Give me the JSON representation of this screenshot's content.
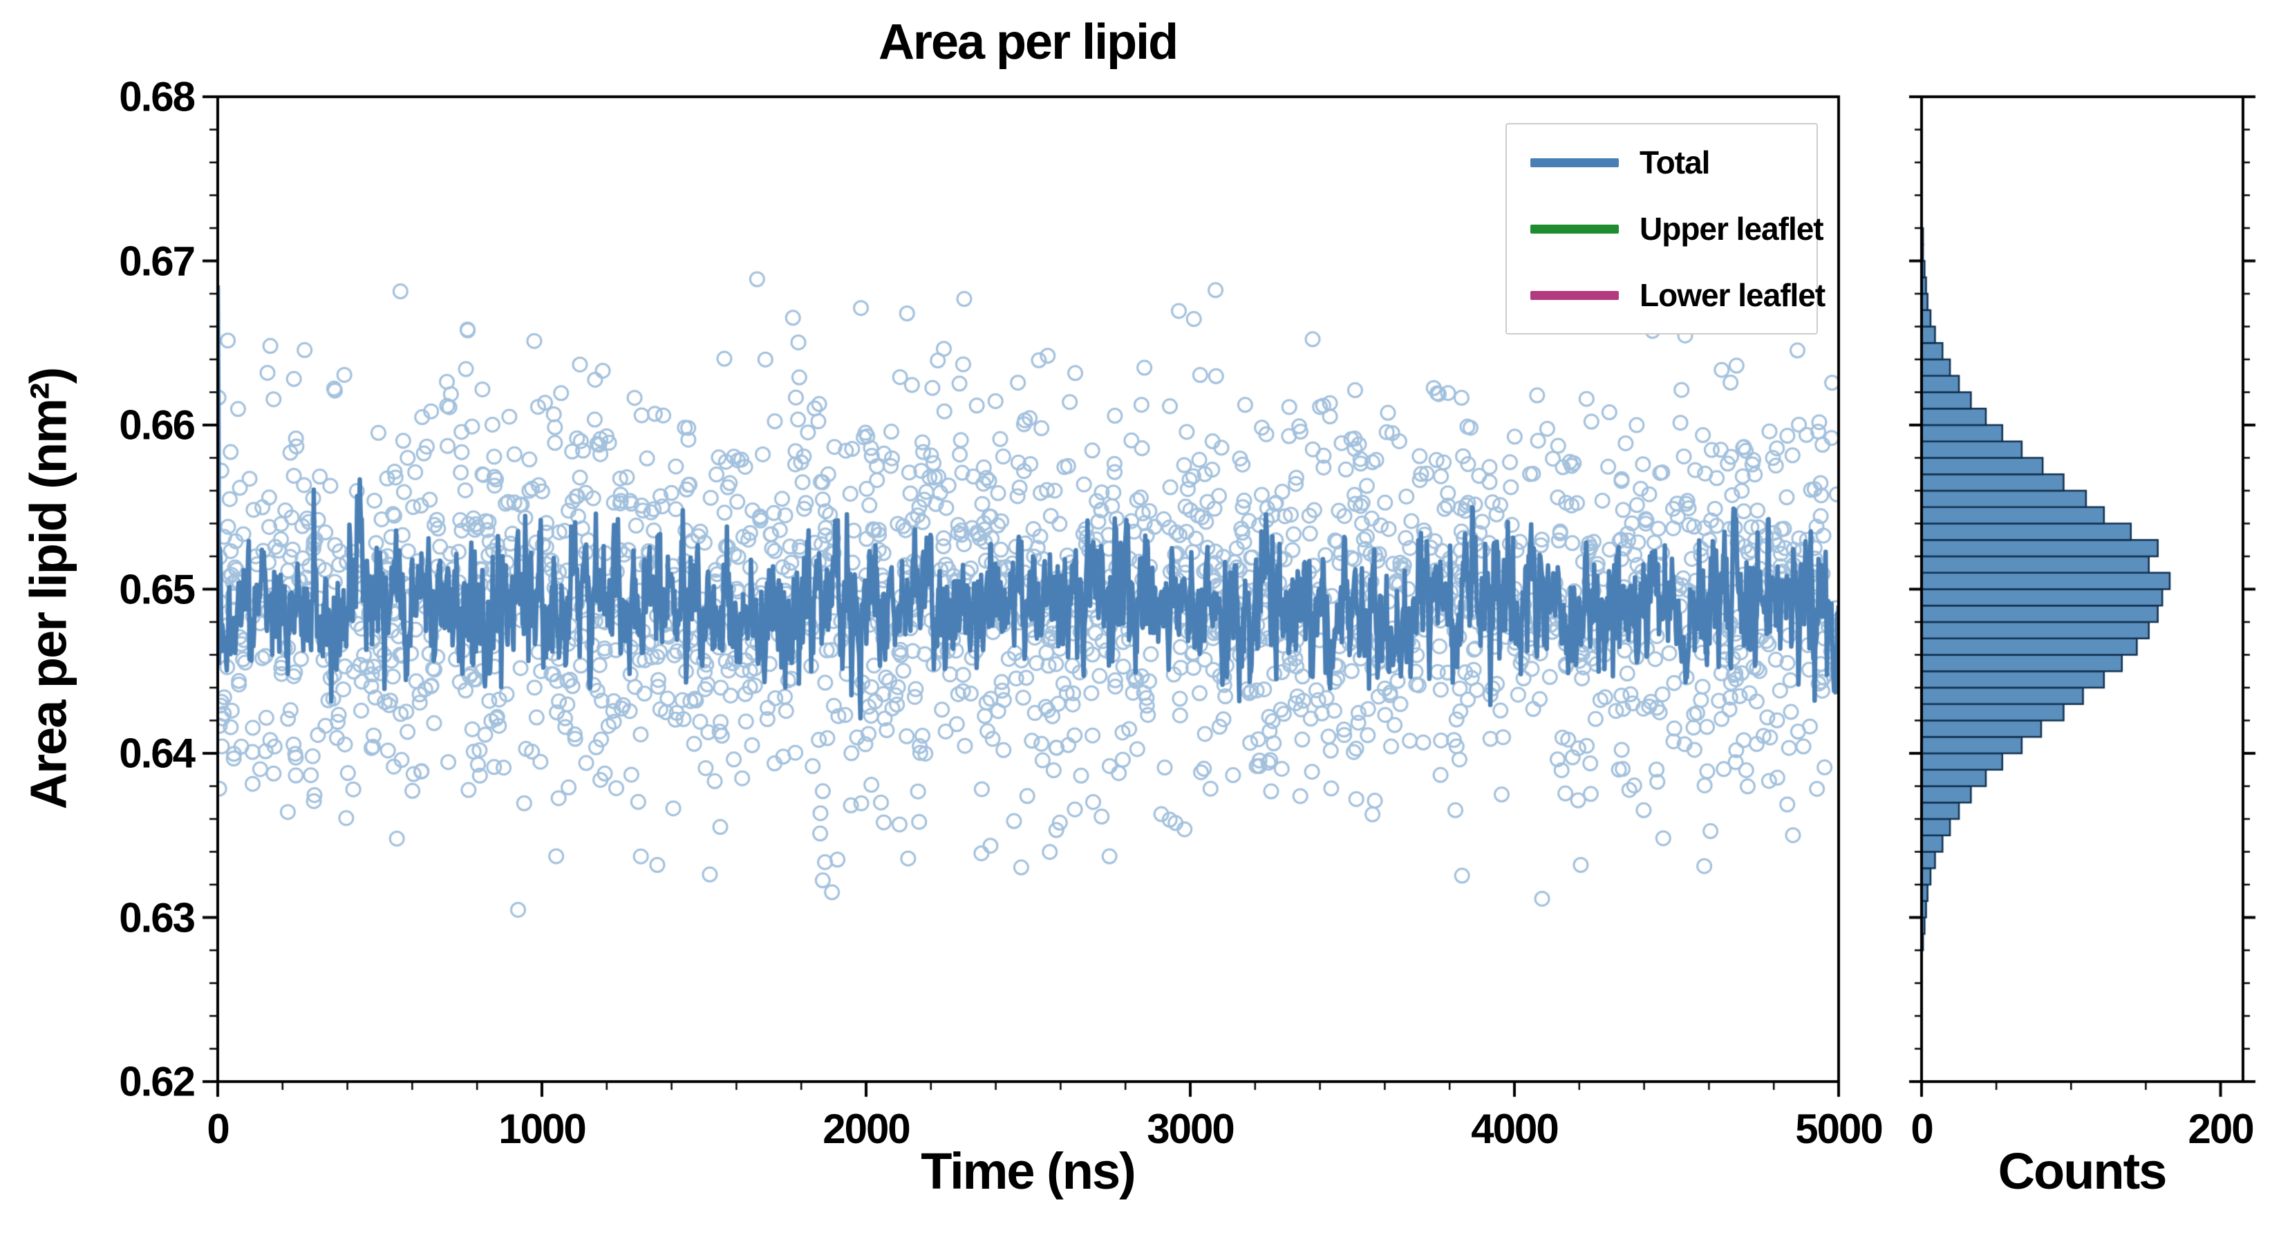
{
  "page": {
    "background": "#ffffff"
  },
  "chart_data": [
    {
      "type": "scatter",
      "panel": "timeseries",
      "title": "Area per lipid",
      "xlabel": "Time (ns)",
      "ylabel": "Area per lipid (nm²)",
      "xlim": [
        0,
        5000
      ],
      "ylim": [
        0.62,
        0.68
      ],
      "xticks": [
        0,
        1000,
        2000,
        3000,
        4000,
        5000
      ],
      "xtick_labels": [
        "0",
        "1000",
        "2000",
        "3000",
        "4000",
        "5000"
      ],
      "yticks": [
        0.62,
        0.63,
        0.64,
        0.65,
        0.66,
        0.67,
        0.68
      ],
      "ytick_labels": [
        "0.62",
        "0.63",
        "0.64",
        "0.65",
        "0.66",
        "0.67",
        "0.68"
      ],
      "x_minor_step": 200,
      "y_minor_step": 0.002,
      "legend": {
        "position": "upper right",
        "entries": [
          {
            "label": "Total",
            "color": "#4a7fb5"
          },
          {
            "label": "Upper leaflet",
            "color": "#1e8c2f"
          },
          {
            "label": "Lower leaflet",
            "color": "#b23a7f"
          }
        ]
      },
      "series": [
        {
          "name": "Total (per-frame scatter)",
          "style": "open-circles",
          "color": "#a3c1dd",
          "n_points": 2200,
          "mean": 0.6493,
          "sd": 0.0063,
          "observed_min": 0.629,
          "observed_max": 0.6715
        },
        {
          "name": "Total (running value line)",
          "style": "line",
          "color": "#4a7fb5",
          "n_points": 2500,
          "mean": 0.6492,
          "sd": 0.002,
          "initial_transient": [
            0.6685,
            0.6605,
            0.6455,
            0.6525
          ]
        }
      ]
    },
    {
      "type": "histogram",
      "panel": "distribution",
      "xlabel": "Counts",
      "xlim": [
        0,
        215
      ],
      "xticks": [
        0,
        200
      ],
      "xtick_labels": [
        "0",
        "200"
      ],
      "x_minor_step": 50,
      "bin_start": 0.628,
      "bin_width": 0.001,
      "counts": [
        1,
        2,
        3,
        4,
        6,
        9,
        14,
        19,
        25,
        33,
        43,
        54,
        67,
        80,
        95,
        108,
        122,
        134,
        144,
        152,
        158,
        161,
        166,
        152,
        158,
        140,
        122,
        110,
        95,
        81,
        67,
        54,
        43,
        33,
        25,
        19,
        14,
        9,
        6,
        4,
        3,
        2,
        1,
        1
      ],
      "bar_color": "#5b8fbe",
      "bar_edge_color": "#10304e"
    }
  ]
}
